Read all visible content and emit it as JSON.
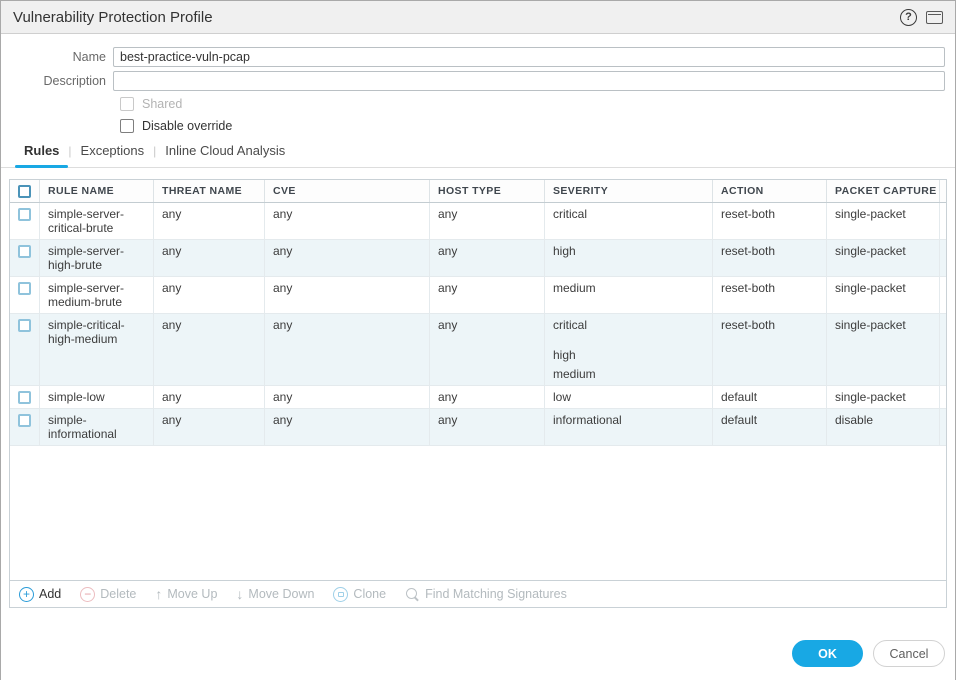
{
  "dialog": {
    "title": "Vulnerability Protection Profile"
  },
  "form": {
    "name_label": "Name",
    "name_value": "best-practice-vuln-pcap",
    "description_label": "Description",
    "description_value": "",
    "shared_label": "Shared",
    "disable_override_label": "Disable override"
  },
  "tabs": [
    {
      "label": "Rules",
      "active": true
    },
    {
      "label": "Exceptions",
      "active": false
    },
    {
      "label": "Inline Cloud Analysis",
      "active": false
    }
  ],
  "table": {
    "columns": [
      "RULE NAME",
      "THREAT NAME",
      "CVE",
      "HOST TYPE",
      "SEVERITY",
      "ACTION",
      "PACKET CAPTURE"
    ],
    "rows": [
      {
        "rule_name": "simple-server-critical-brute",
        "threat_name": "any",
        "cve": "any",
        "host_type": "any",
        "severity": [
          "critical"
        ],
        "action": "reset-both",
        "packet_capture": "single-packet"
      },
      {
        "rule_name": "simple-server-high-brute",
        "threat_name": "any",
        "cve": "any",
        "host_type": "any",
        "severity": [
          "high"
        ],
        "action": "reset-both",
        "packet_capture": "single-packet"
      },
      {
        "rule_name": "simple-server-medium-brute",
        "threat_name": "any",
        "cve": "any",
        "host_type": "any",
        "severity": [
          "medium"
        ],
        "action": "reset-both",
        "packet_capture": "single-packet"
      },
      {
        "rule_name": "simple-critical-high-medium",
        "threat_name": "any",
        "cve": "any",
        "host_type": "any",
        "severity": [
          "critical",
          "high",
          "medium"
        ],
        "action": "reset-both",
        "packet_capture": "single-packet"
      },
      {
        "rule_name": "simple-low",
        "threat_name": "any",
        "cve": "any",
        "host_type": "any",
        "severity": [
          "low"
        ],
        "action": "default",
        "packet_capture": "single-packet"
      },
      {
        "rule_name": "simple-informational",
        "threat_name": "any",
        "cve": "any",
        "host_type": "any",
        "severity": [
          "informational"
        ],
        "action": "default",
        "packet_capture": "disable"
      }
    ]
  },
  "toolbar": {
    "items": [
      {
        "id": "add",
        "label": "Add",
        "icon": "plus-circle-icon",
        "enabled": true
      },
      {
        "id": "delete",
        "label": "Delete",
        "icon": "minus-circle-icon",
        "enabled": false
      },
      {
        "id": "move-up",
        "label": "Move Up",
        "icon": "arrow-up-icon",
        "enabled": false
      },
      {
        "id": "move-down",
        "label": "Move Down",
        "icon": "arrow-down-icon",
        "enabled": false
      },
      {
        "id": "clone",
        "label": "Clone",
        "icon": "clone-icon",
        "enabled": false
      },
      {
        "id": "find-matching-signatures",
        "label": "Find Matching Signatures",
        "icon": "search-icon",
        "enabled": false
      }
    ]
  },
  "footer": {
    "ok_label": "OK",
    "cancel_label": "Cancel"
  },
  "colors": {
    "accent_blue": "#18a8e4",
    "row_alt": "#edf5f8",
    "checkbox_border": "#8fc3dc",
    "header_checkbox_border": "#4a93b8",
    "delete_icon": "#e39ba0",
    "titlebar_bg": "#f0f0f0"
  }
}
